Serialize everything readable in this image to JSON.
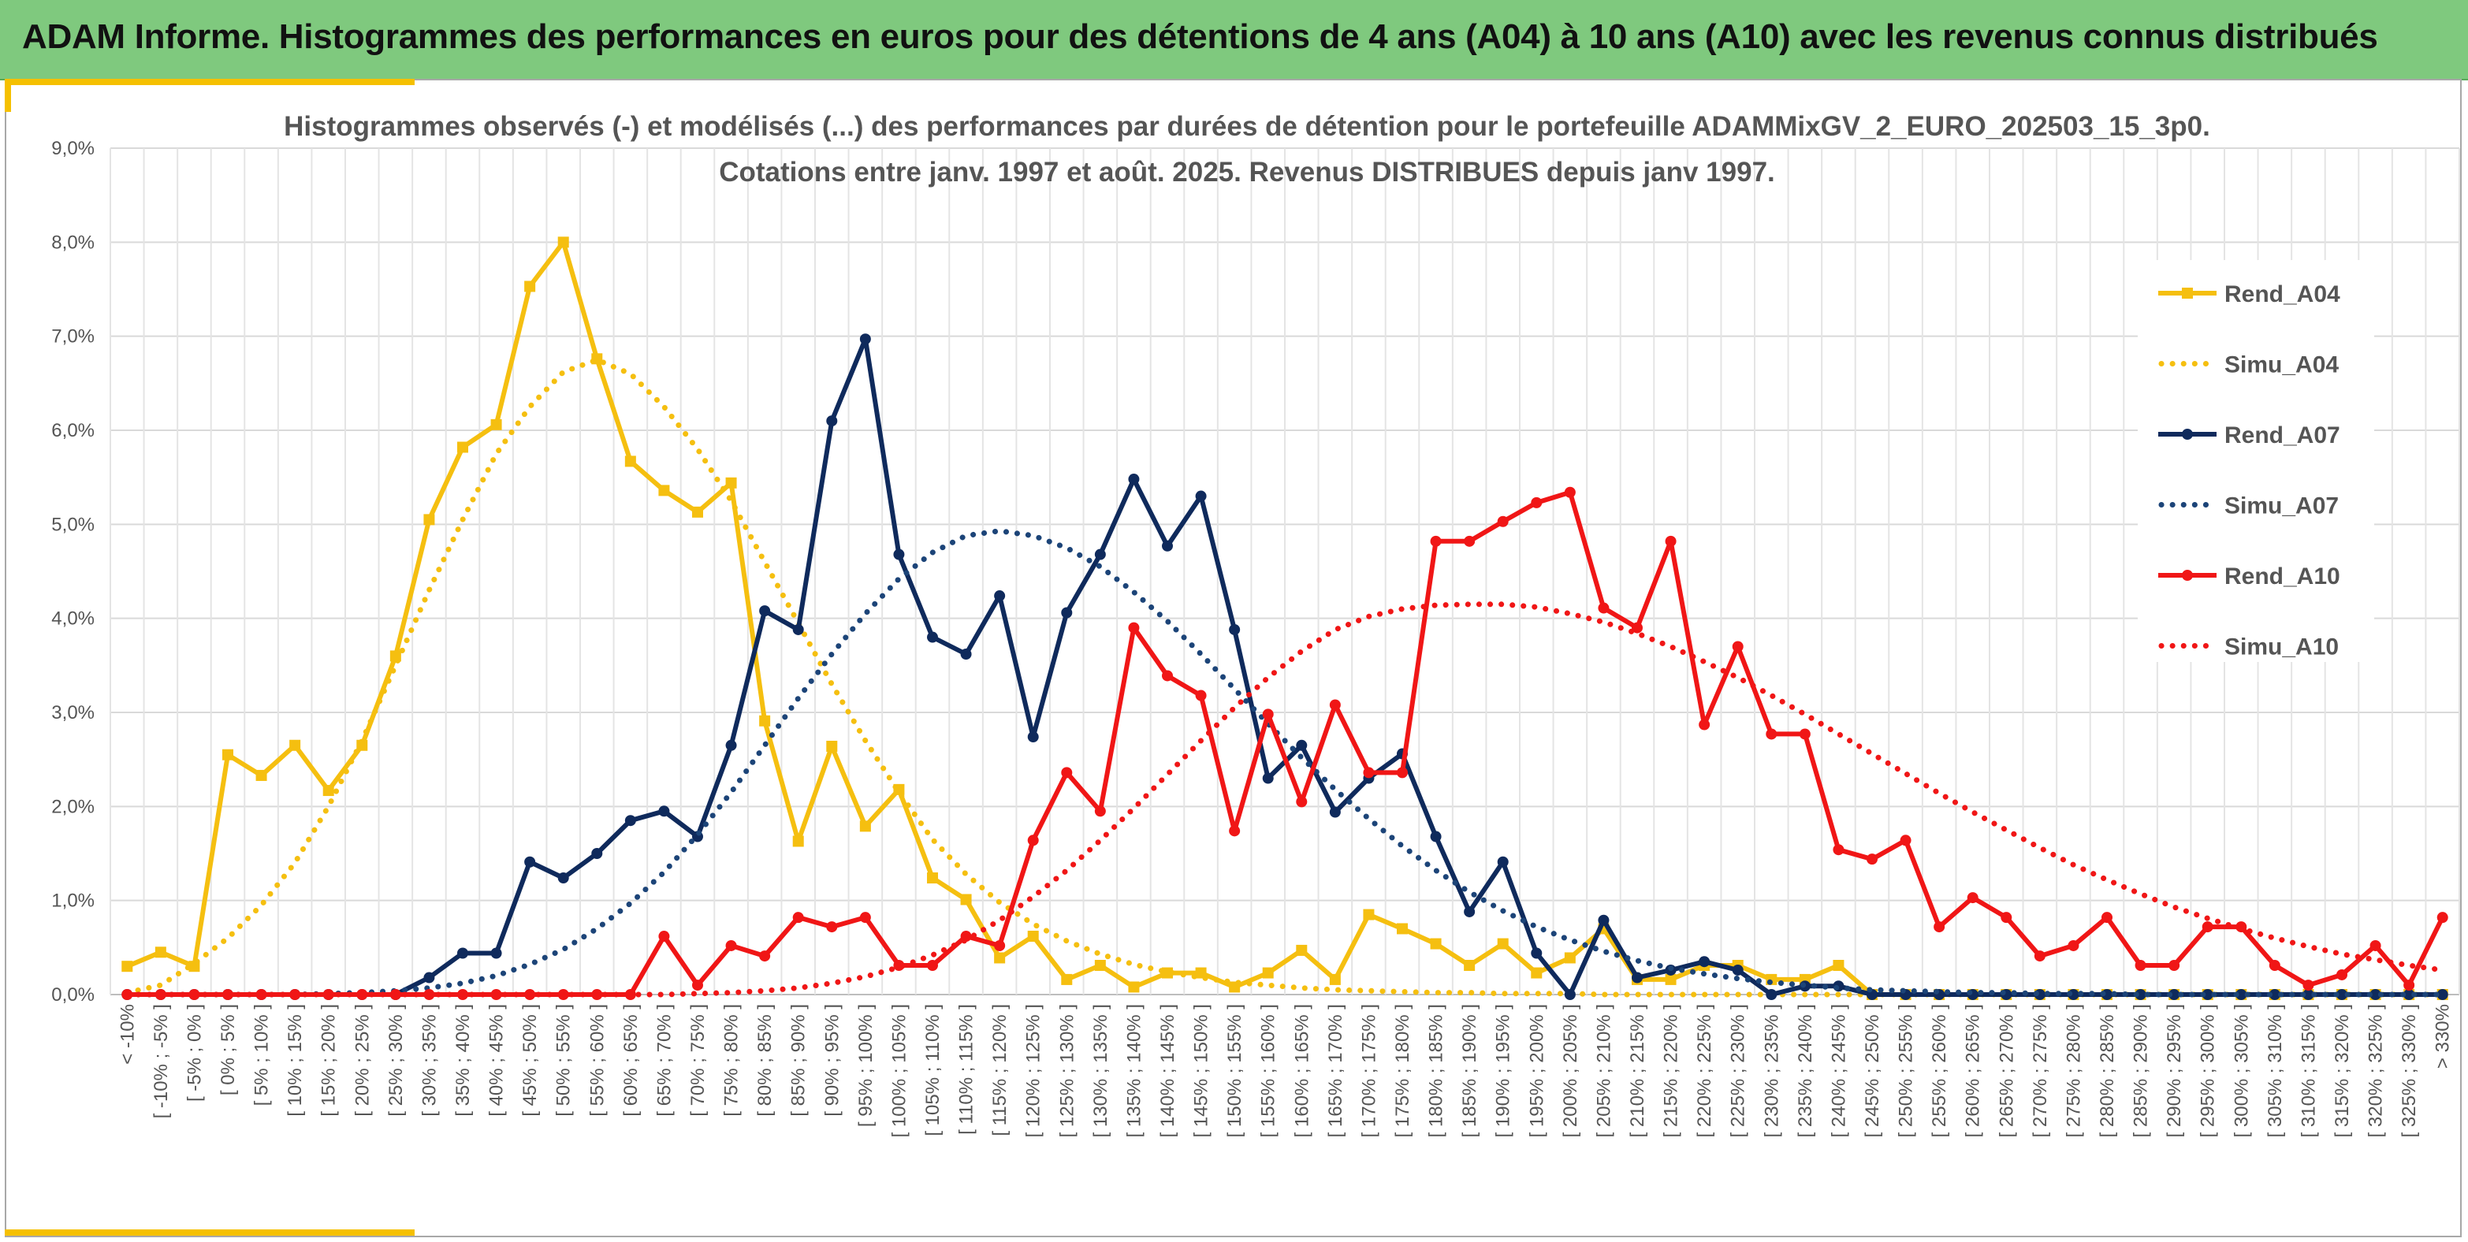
{
  "banner": {
    "title": "ADAM Informe. Histogrammes des performances en euros pour des détentions de 4 ans (A04) à 10 ans (A10) avec les revenus connus distribués"
  },
  "colors": {
    "banner_bg": "#7fc97e",
    "accent": "#f5c000",
    "A04": "#f5bf10",
    "A07": "#0f2a5c",
    "A10": "#f01616",
    "Simu_A07": "#1c4478"
  },
  "chart_data": {
    "type": "line",
    "title_lines": [
      "Histogrammes observés (-) et modélisés (...) des performances par durées de détention pour le portefeuille ADAMMixGV_2_EURO_202503_15_3p0.",
      "Cotations entre janv. 1997 et août. 2025. Revenus DISTRIBUES depuis janv 1997."
    ],
    "xlabel": "",
    "ylabel": "",
    "ylim": [
      0,
      9
    ],
    "yticks": [
      "0,0%",
      "1,0%",
      "2,0%",
      "3,0%",
      "4,0%",
      "5,0%",
      "6,0%",
      "7,0%",
      "8,0%",
      "9,0%"
    ],
    "grid": true,
    "legend_position": "right",
    "categories": [
      "< -10%",
      "[ -10% ; -5% ]",
      "[ -5% ; 0% ]",
      "[ 0% ; 5% ]",
      "[ 5% ; 10% ]",
      "[ 10% ; 15% ]",
      "[ 15% ; 20% ]",
      "[ 20% ; 25% ]",
      "[ 25% ; 30% ]",
      "[ 30% ; 35% ]",
      "[ 35% ; 40% ]",
      "[ 40% ; 45% ]",
      "[ 45% ; 50% ]",
      "[ 50% ; 55% ]",
      "[ 55% ; 60% ]",
      "[ 60% ; 65% ]",
      "[ 65% ; 70% ]",
      "[ 70% ; 75% ]",
      "[ 75% ; 80% ]",
      "[ 80% ; 85% ]",
      "[ 85% ; 90% ]",
      "[ 90% ; 95% ]",
      "[ 95% ; 100% ]",
      "[ 100% ; 105% ]",
      "[ 105% ; 110% ]",
      "[ 110% ; 115% ]",
      "[ 115% ; 120% ]",
      "[ 120% ; 125% ]",
      "[ 125% ; 130% ]",
      "[ 130% ; 135% ]",
      "[ 135% ; 140% ]",
      "[ 140% ; 145% ]",
      "[ 145% ; 150% ]",
      "[ 150% ; 155% ]",
      "[ 155% ; 160% ]",
      "[ 160% ; 165% ]",
      "[ 165% ; 170% ]",
      "[ 170% ; 175% ]",
      "[ 175% ; 180% ]",
      "[ 180% ; 185% ]",
      "[ 185% ; 190% ]",
      "[ 190% ; 195% ]",
      "[ 195% ; 200% ]",
      "[ 200% ; 205% ]",
      "[ 205% ; 210% ]",
      "[ 210% ; 215% ]",
      "[ 215% ; 220% ]",
      "[ 220% ; 225% ]",
      "[ 225% ; 230% ]",
      "[ 230% ; 235% ]",
      "[ 235% ; 240% ]",
      "[ 240% ; 245% ]",
      "[ 245% ; 250% ]",
      "[ 250% ; 255% ]",
      "[ 255% ; 260% ]",
      "[ 260% ; 265% ]",
      "[ 265% ; 270% ]",
      "[ 270% ; 275% ]",
      "[ 275% ; 280% ]",
      "[ 280% ; 285% ]",
      "[ 285% ; 290% ]",
      "[ 290% ; 295% ]",
      "[ 295% ; 300% ]",
      "[ 300% ; 305% ]",
      "[ 305% ; 310% ]",
      "[ 310% ; 315% ]",
      "[ 315% ; 320% ]",
      "[ 320% ; 325% ]",
      "[ 325% ; 330% ]",
      "> 330%"
    ],
    "series": [
      {
        "name": "Rend_A04",
        "style": "solid",
        "marker": "square",
        "color": "#f5bf10",
        "values": [
          0.3,
          0.45,
          0.3,
          2.55,
          2.33,
          2.65,
          2.17,
          2.65,
          3.6,
          5.05,
          5.82,
          6.06,
          7.53,
          8.0,
          6.76,
          5.67,
          5.36,
          5.13,
          5.44,
          2.91,
          1.63,
          2.64,
          1.79,
          2.18,
          1.24,
          1.01,
          0.39,
          0.62,
          0.16,
          0.31,
          0.08,
          0.23,
          0.23,
          0.08,
          0.23,
          0.47,
          0.16,
          0.85,
          0.7,
          0.54,
          0.31,
          0.54,
          0.23,
          0.39,
          0.7,
          0.16,
          0.16,
          0.31,
          0.31,
          0.16,
          0.16,
          0.31,
          0.0,
          0.0,
          0.0,
          0.0,
          0.0,
          0.0,
          0.0,
          0.0,
          0.0,
          0.0,
          0.0,
          0.0,
          0.0,
          0.0,
          0.0,
          0.0,
          0.0,
          0.0
        ]
      },
      {
        "name": "Simu_A04",
        "style": "dotted",
        "marker": "none",
        "color": "#f5bf10",
        "values": [
          0.02,
          0.1,
          0.33,
          0.6,
          0.95,
          1.4,
          2.0,
          2.7,
          3.5,
          4.3,
          5.05,
          5.75,
          6.25,
          6.62,
          6.75,
          6.6,
          6.25,
          5.8,
          5.25,
          4.6,
          3.95,
          3.3,
          2.7,
          2.15,
          1.65,
          1.28,
          0.98,
          0.75,
          0.57,
          0.43,
          0.32,
          0.24,
          0.18,
          0.13,
          0.1,
          0.07,
          0.05,
          0.04,
          0.03,
          0.02,
          0.02,
          0.01,
          0.01,
          0.01,
          0.0,
          0.0,
          0.0,
          0.0,
          0.0,
          0.0,
          0.0,
          0.0,
          0.0,
          0.0,
          0.0,
          0.0,
          0.0,
          0.0,
          0.0,
          0.0,
          0.0,
          0.0,
          0.0,
          0.0,
          0.0,
          0.0,
          0.0,
          0.0,
          0.0,
          0.0
        ]
      },
      {
        "name": "Rend_A07",
        "style": "solid",
        "marker": "circle",
        "color": "#0f2a5c",
        "values": [
          0.0,
          0.0,
          0.0,
          0.0,
          0.0,
          0.0,
          0.0,
          0.0,
          0.0,
          0.18,
          0.44,
          0.44,
          1.41,
          1.24,
          1.5,
          1.85,
          1.95,
          1.68,
          2.65,
          4.08,
          3.88,
          6.1,
          6.97,
          4.68,
          3.8,
          3.62,
          4.24,
          2.74,
          4.06,
          4.68,
          5.48,
          4.77,
          5.3,
          3.88,
          2.3,
          2.65,
          1.94,
          2.3,
          2.56,
          1.68,
          0.88,
          1.41,
          0.44,
          0.0,
          0.79,
          0.18,
          0.26,
          0.35,
          0.26,
          0.0,
          0.09,
          0.09,
          0.0,
          0.0,
          0.0,
          0.0,
          0.0,
          0.0,
          0.0,
          0.0,
          0.0,
          0.0,
          0.0,
          0.0,
          0.0,
          0.0,
          0.0,
          0.0,
          0.0,
          0.0
        ]
      },
      {
        "name": "Simu_A07",
        "style": "dotted",
        "marker": "none",
        "color": "#1c4478",
        "values": [
          0.0,
          0.0,
          0.0,
          0.0,
          0.0,
          0.0,
          0.01,
          0.02,
          0.04,
          0.07,
          0.12,
          0.2,
          0.32,
          0.48,
          0.7,
          0.97,
          1.3,
          1.7,
          2.15,
          2.65,
          3.15,
          3.62,
          4.05,
          4.42,
          4.7,
          4.88,
          4.93,
          4.88,
          4.75,
          4.55,
          4.28,
          3.97,
          3.62,
          3.25,
          2.88,
          2.52,
          2.18,
          1.87,
          1.58,
          1.32,
          1.09,
          0.89,
          0.72,
          0.58,
          0.46,
          0.36,
          0.28,
          0.22,
          0.17,
          0.13,
          0.1,
          0.07,
          0.05,
          0.04,
          0.03,
          0.02,
          0.02,
          0.01,
          0.01,
          0.01,
          0.0,
          0.0,
          0.0,
          0.0,
          0.0,
          0.0,
          0.0,
          0.0,
          0.0,
          0.0
        ]
      },
      {
        "name": "Rend_A10",
        "style": "solid",
        "marker": "circle",
        "color": "#f01616",
        "values": [
          0.0,
          0.0,
          0.0,
          0.0,
          0.0,
          0.0,
          0.0,
          0.0,
          0.0,
          0.0,
          0.0,
          0.0,
          0.0,
          0.0,
          0.0,
          0.0,
          0.62,
          0.1,
          0.52,
          0.41,
          0.82,
          0.72,
          0.82,
          0.31,
          0.31,
          0.62,
          0.52,
          1.64,
          2.36,
          1.95,
          3.9,
          3.39,
          3.18,
          1.74,
          2.98,
          2.05,
          3.08,
          2.36,
          2.36,
          4.82,
          4.82,
          5.03,
          5.23,
          5.34,
          4.11,
          3.9,
          4.82,
          2.87,
          3.7,
          2.77,
          2.77,
          1.54,
          1.44,
          1.64,
          0.72,
          1.03,
          0.82,
          0.41,
          0.52,
          0.82,
          0.31,
          0.31,
          0.72,
          0.72,
          0.31,
          0.1,
          0.21,
          0.52,
          0.1,
          0.82
        ]
      },
      {
        "name": "Simu_A10",
        "style": "dotted",
        "marker": "none",
        "color": "#f01616",
        "values": [
          0.0,
          0.0,
          0.0,
          0.0,
          0.0,
          0.0,
          0.0,
          0.0,
          0.0,
          0.0,
          0.0,
          0.0,
          0.0,
          0.0,
          0.0,
          0.0,
          0.0,
          0.01,
          0.02,
          0.04,
          0.07,
          0.12,
          0.19,
          0.29,
          0.42,
          0.58,
          0.79,
          1.04,
          1.32,
          1.64,
          1.98,
          2.34,
          2.7,
          3.05,
          3.37,
          3.65,
          3.88,
          4.02,
          4.1,
          4.14,
          4.15,
          4.15,
          4.12,
          4.05,
          3.96,
          3.84,
          3.7,
          3.54,
          3.37,
          3.18,
          2.98,
          2.77,
          2.56,
          2.35,
          2.14,
          1.94,
          1.75,
          1.56,
          1.38,
          1.22,
          1.07,
          0.93,
          0.81,
          0.7,
          0.6,
          0.51,
          0.43,
          0.37,
          0.31,
          0.26
        ]
      }
    ]
  }
}
